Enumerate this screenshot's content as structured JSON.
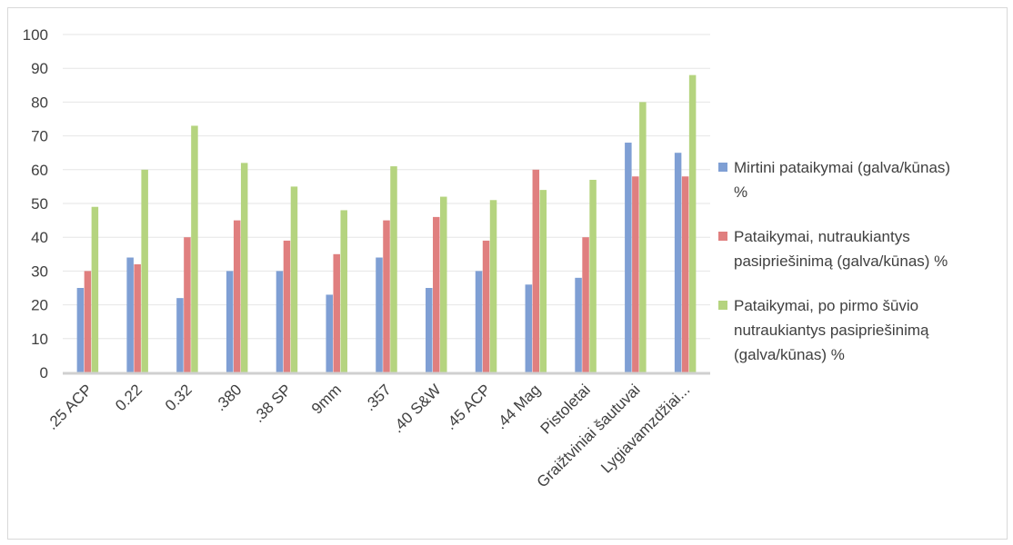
{
  "chart_data": {
    "type": "bar",
    "title": "",
    "xlabel": "",
    "ylabel": "",
    "ylim": [
      0,
      100
    ],
    "yticks": [
      0,
      10,
      20,
      30,
      40,
      50,
      60,
      70,
      80,
      90,
      100
    ],
    "grid": true,
    "legend_position": "right",
    "categories": [
      ".25 ACP",
      "0.22",
      "0.32",
      ".380",
      ".38 SP",
      "9mm",
      ".357",
      ".40 S&W",
      ".45 ACP",
      ".44 Mag",
      "Pistoletai",
      "Graižtviniai šautuvai",
      "Lygiavamzdžiai..."
    ],
    "series": [
      {
        "name": "Mirtini pataikymai (galva/kūnas) %",
        "legend_lines": [
          "Mirtini pataikymai (galva/kūnas)",
          "%"
        ],
        "color": "#7f9fd4",
        "values": [
          25,
          34,
          22,
          30,
          30,
          23,
          34,
          25,
          30,
          26,
          28,
          68,
          65
        ]
      },
      {
        "name": "Pataikymai, nutraukiantys pasipriešinimą (galva/kūnas) %",
        "legend_lines": [
          "Pataikymai, nutraukiantys",
          "pasipriešinimą (galva/kūnas) %"
        ],
        "color": "#e07f7f",
        "values": [
          30,
          32,
          40,
          45,
          39,
          35,
          45,
          46,
          39,
          60,
          40,
          58,
          58
        ]
      },
      {
        "name": "Pataikymai, po pirmo šūvio nutraukiantys pasipriešinimą (galva/kūnas) %",
        "legend_lines": [
          "Pataikymai, po pirmo šūvio",
          "nutraukiantys pasipriešinimą",
          "(galva/kūnas) %"
        ],
        "color": "#b5d47f",
        "values": [
          49,
          60,
          73,
          62,
          55,
          48,
          61,
          52,
          51,
          54,
          57,
          80,
          88
        ]
      }
    ]
  }
}
